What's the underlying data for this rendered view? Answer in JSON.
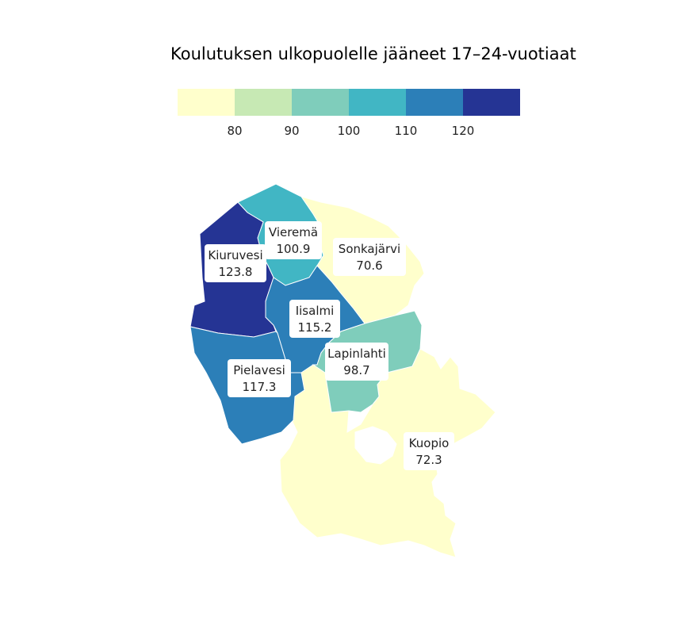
{
  "title": "Koulutuksen ulkopuolelle jääneet 17–24-vuotiaat",
  "legend": {
    "breaks": [
      80,
      90,
      100,
      110,
      120
    ],
    "colors": [
      "#ffffcc",
      "#c7e9b4",
      "#7fcdbb",
      "#41b6c4",
      "#2c7fb8",
      "#253494"
    ]
  },
  "municipalities": [
    {
      "name": "Vieremä",
      "value": "100.9",
      "color": "#41b6c4"
    },
    {
      "name": "Sonkajärvi",
      "value": "70.6",
      "color": "#ffffcc"
    },
    {
      "name": "Kiuruvesi",
      "value": "123.8",
      "color": "#253494"
    },
    {
      "name": "Iisalmi",
      "value": "115.2",
      "color": "#2c7fb8"
    },
    {
      "name": "Lapinlahti",
      "value": "98.7",
      "color": "#7fcdbb"
    },
    {
      "name": "Pielavesi",
      "value": "117.3",
      "color": "#2c7fb8"
    },
    {
      "name": "Kuopio",
      "value": "72.3",
      "color": "#ffffcc"
    }
  ]
}
